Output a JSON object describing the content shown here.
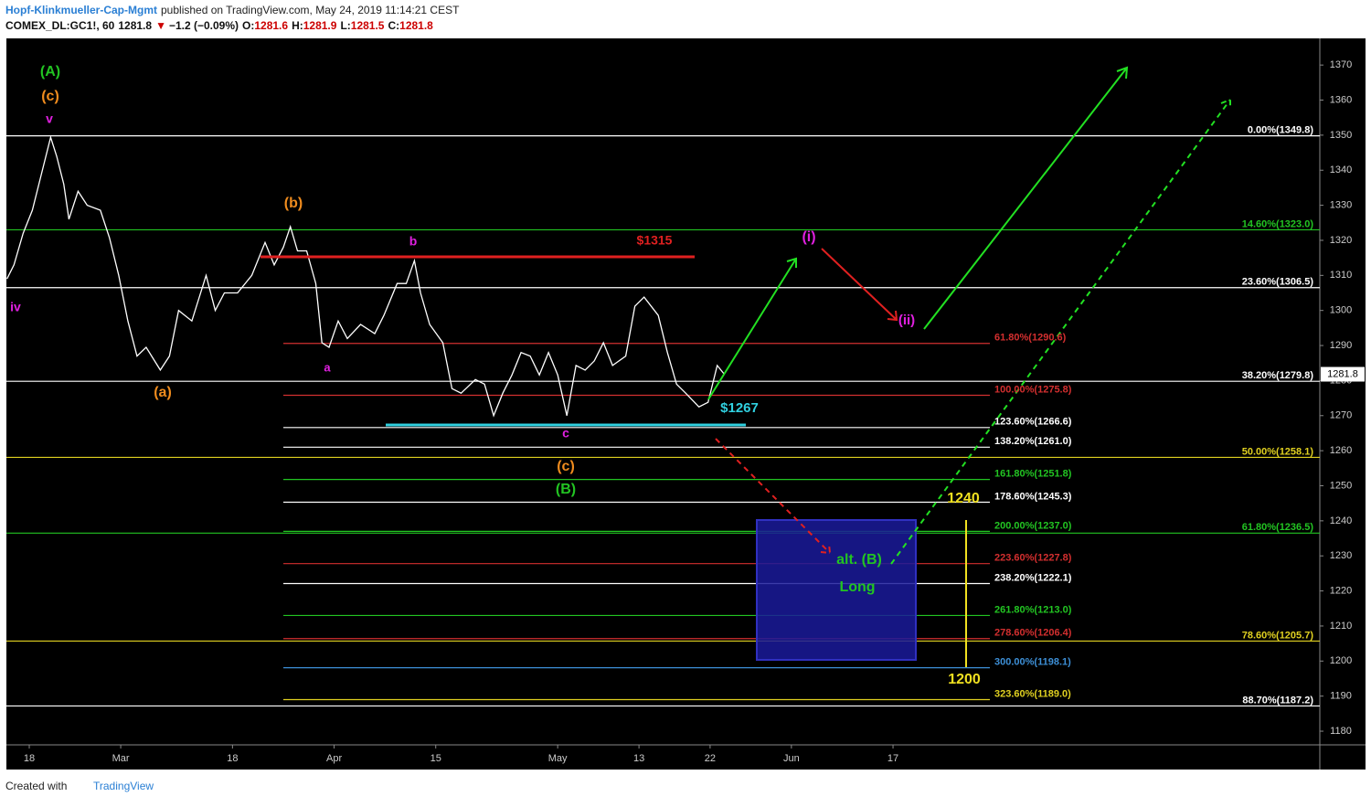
{
  "header": {
    "author": "Hopf-Klinkmueller-Cap-Mgmt",
    "published": "published on TradingView.com, May 24, 2019 11:14:21 CEST",
    "symbol": "COMEX_DL:GC1!, 60",
    "last": "1281.8",
    "arrow": "▼",
    "change": "−1.2 (−0.09%)",
    "o_label": "O:",
    "open": "1281.6",
    "h_label": "H:",
    "high": "1281.9",
    "l_label": "L:",
    "low": "1281.5",
    "c_label": "C:",
    "close": "1281.8"
  },
  "footer": {
    "created": "Created with",
    "brand": "TradingView"
  },
  "chart_data": {
    "type": "line",
    "color": "#ffffff",
    "last_price": 1281.8,
    "xlim": [
      -2.25,
      127
    ],
    "ylim": [
      1176.1,
      1377.6
    ],
    "yticks": [
      1180,
      1190,
      1200,
      1210,
      1220,
      1230,
      1240,
      1250,
      1260,
      1270,
      1280,
      1290,
      1300,
      1310,
      1320,
      1330,
      1340,
      1350,
      1360,
      1370
    ],
    "xticks": [
      {
        "value": 0,
        "label": "18"
      },
      {
        "value": 9,
        "label": "Mar"
      },
      {
        "value": 20,
        "label": "18"
      },
      {
        "value": 30,
        "label": "Apr"
      },
      {
        "value": 40,
        "label": "15"
      },
      {
        "value": 52,
        "label": "May"
      },
      {
        "value": 60,
        "label": "13"
      },
      {
        "value": 67,
        "label": "22"
      },
      {
        "value": 75,
        "label": "Jun"
      },
      {
        "value": 85,
        "label": "17"
      }
    ],
    "series": [
      {
        "name": "GC1!",
        "x": [
          -2.2,
          -1.5,
          -0.6,
          0.3,
          1.2,
          2.1,
          2.7,
          3.4,
          3.9,
          4.8,
          5.7,
          7.0,
          7.9,
          8.8,
          9.7,
          10.6,
          11.5,
          12.9,
          13.8,
          14.7,
          16.0,
          17.4,
          18.3,
          19.2,
          20.5,
          21.9,
          23.2,
          24.1,
          25.0,
          25.7,
          26.4,
          27.3,
          28.2,
          28.8,
          29.5,
          30.4,
          31.3,
          32.6,
          34.0,
          34.9,
          36.2,
          37.1,
          37.9,
          38.5,
          39.4,
          40.7,
          41.6,
          42.5,
          43.9,
          44.8,
          45.7,
          46.6,
          47.5,
          48.4,
          49.3,
          50.2,
          51.1,
          52.0,
          52.9,
          53.8,
          54.7,
          55.6,
          56.5,
          57.4,
          58.7,
          59.6,
          60.5,
          61.9,
          62.8,
          63.7,
          64.6,
          65.9,
          66.8,
          67.7,
          68.4
        ],
        "values": [
          1309,
          1313,
          1322,
          1328.6,
          1339,
          1349.4,
          1344,
          1336,
          1326,
          1334,
          1330,
          1328.6,
          1320.7,
          1310,
          1297,
          1287,
          1289.5,
          1283,
          1287,
          1300,
          1297,
          1310,
          1300,
          1305,
          1305,
          1310,
          1319.4,
          1313,
          1318,
          1323.9,
          1317,
          1317,
          1307.7,
          1290.8,
          1289.5,
          1297,
          1292,
          1296,
          1293.4,
          1298.6,
          1307.7,
          1307.7,
          1314.2,
          1305,
          1296,
          1290.8,
          1277.7,
          1276.4,
          1280.3,
          1279,
          1270,
          1276.4,
          1281.6,
          1288,
          1287,
          1281.6,
          1288,
          1281.6,
          1270,
          1284.3,
          1283,
          1285.6,
          1290.8,
          1284.3,
          1287,
          1301.2,
          1303.8,
          1298.6,
          1288,
          1279,
          1276.4,
          1272.5,
          1273.8,
          1284.3,
          1281.8
        ]
      }
    ],
    "fib_left": [
      {
        "label": "61.80%(1290.6)",
        "value": 1290.6,
        "color": "#d32f2f"
      },
      {
        "label": "100.00%(1275.8)",
        "value": 1275.8,
        "color": "#d32f2f"
      },
      {
        "label": "123.60%(1266.6)",
        "value": 1266.6,
        "color": "#ffffff"
      },
      {
        "label": "138.20%(1261.0)",
        "value": 1261.0,
        "color": "#ffffff"
      },
      {
        "label": "161.80%(1251.8)",
        "value": 1251.8,
        "color": "#22c422"
      },
      {
        "label": "178.60%(1245.3)",
        "value": 1245.3,
        "color": "#ffffff"
      },
      {
        "label": "200.00%(1237.0)",
        "value": 1237.0,
        "color": "#22c422"
      },
      {
        "label": "223.60%(1227.8)",
        "value": 1227.8,
        "color": "#d32f2f"
      },
      {
        "label": "238.20%(1222.1)",
        "value": 1222.1,
        "color": "#ffffff"
      },
      {
        "label": "261.80%(1213.0)",
        "value": 1213.0,
        "color": "#22c422"
      },
      {
        "label": "278.60%(1206.4)",
        "value": 1206.4,
        "color": "#d32f2f"
      },
      {
        "label": "300.00%(1198.1)",
        "value": 1198.1,
        "color": "#3d8fd6"
      },
      {
        "label": "323.60%(1189.0)",
        "value": 1189.0,
        "color": "#e0d020"
      }
    ],
    "fib_right": [
      {
        "label": "0.00%(1349.8)",
        "value": 1349.8,
        "color": "#ffffff"
      },
      {
        "label": "14.60%(1323.0)",
        "value": 1323.0,
        "color": "#22c422"
      },
      {
        "label": "23.60%(1306.5)",
        "value": 1306.5,
        "color": "#ffffff"
      },
      {
        "label": "38.20%(1279.8)",
        "value": 1279.8,
        "color": "#ffffff"
      },
      {
        "label": "50.00%(1258.1)",
        "value": 1258.1,
        "color": "#e0d020"
      },
      {
        "label": "61.80%(1236.5)",
        "value": 1236.5,
        "color": "#22c422"
      },
      {
        "label": "78.60%(1205.7)",
        "value": 1205.7,
        "color": "#e0d020"
      },
      {
        "label": "88.70%(1187.2)",
        "value": 1187.2,
        "color": "#ffffff"
      }
    ],
    "annotations": [
      {
        "text": "(A)",
        "color": "#22c422"
      },
      {
        "text": "(c)",
        "color": "#f08c1e"
      },
      {
        "text": "v",
        "color": "#e020e0"
      },
      {
        "text": "iv",
        "color": "#e020e0"
      },
      {
        "text": "(a)",
        "color": "#f08c1e"
      },
      {
        "text": "(b)",
        "color": "#f08c1e"
      },
      {
        "text": "b",
        "color": "#e020e0"
      },
      {
        "text": "a",
        "color": "#e020e0"
      },
      {
        "text": "$1315",
        "color": "#e02020"
      },
      {
        "text": "(i)",
        "color": "#e020e0"
      },
      {
        "text": "(ii)",
        "color": "#e020e0"
      },
      {
        "text": "$1267",
        "color": "#30d0e0"
      },
      {
        "text": "c",
        "color": "#e020e0"
      },
      {
        "text": "(c)",
        "color": "#f08c1e"
      },
      {
        "text": "(B)",
        "color": "#22c422"
      },
      {
        "text": "1240",
        "color": "#f0e020"
      },
      {
        "text": "alt. (B)",
        "color": "#22c422"
      },
      {
        "text": "Long",
        "color": "#22c422"
      },
      {
        "text": "1200",
        "color": "#f0e020"
      }
    ]
  }
}
